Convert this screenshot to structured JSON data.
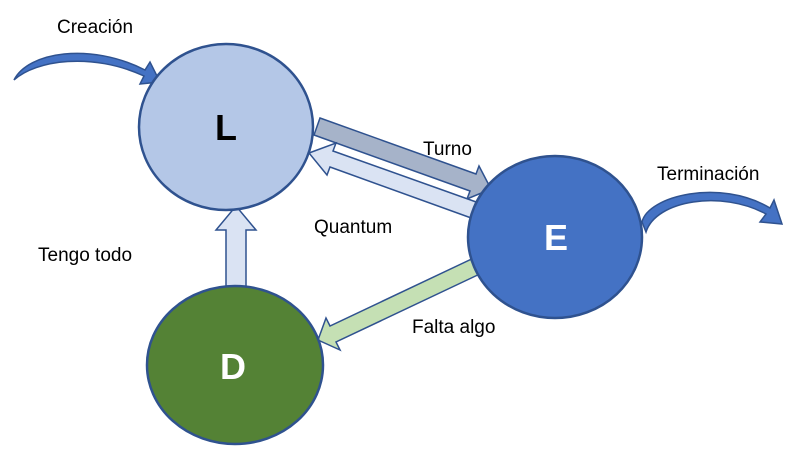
{
  "nodes": {
    "l": {
      "letter": "L",
      "fill": "#b4c7e7",
      "stroke": "#2f528f",
      "text_color": "#000000"
    },
    "e": {
      "letter": "E",
      "fill": "#4472c4",
      "stroke": "#2f528f",
      "text_color": "#ffffff"
    },
    "d": {
      "letter": "D",
      "fill": "#548235",
      "stroke": "#2f528f",
      "text_color": "#ffffff"
    }
  },
  "transitions": {
    "creacion": "Creación",
    "terminacion": "Terminación",
    "turno": "Turno",
    "quantum": "Quantum",
    "tengo_todo": "Tengo todo",
    "falta_algo": "Falta algo"
  },
  "colors": {
    "turno_arrow": "#a6b3c9",
    "quantum_arrow": "#dae3f3",
    "tengo_todo_arrow": "#dae3f3",
    "falta_algo_arrow": "#c5e0b4",
    "curved_arrow": "#4472c4",
    "arrow_outline": "#2f528f"
  }
}
